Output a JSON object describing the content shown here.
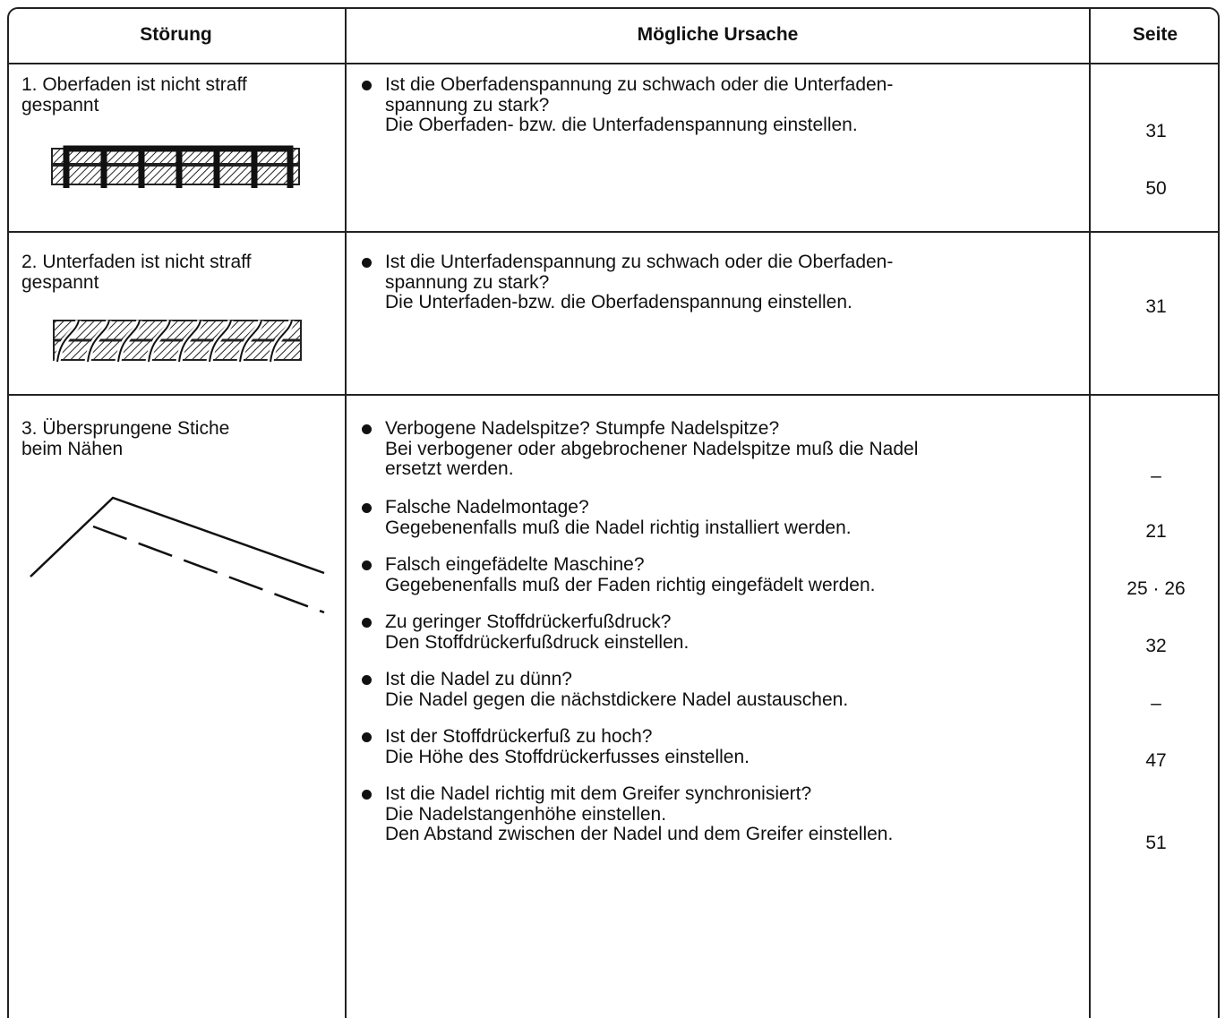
{
  "table": {
    "header": [
      "Störung",
      "Mögliche Ursache",
      "Seite"
    ],
    "rows": [
      {
        "problem": "1. Oberfaden ist nicht straff\ngespannt",
        "causes": [
          "Ist die Oberfadenspannung zu schwach oder die Unterfaden-\nspannung zu stark?\nDie Oberfaden- bzw. die Unterfadenspannung einstellen."
        ],
        "pages": [
          "31",
          "50"
        ]
      },
      {
        "problem": "2. Unterfaden ist nicht straff\ngespannt",
        "causes": [
          "Ist die Unterfadenspannung zu schwach oder die Oberfaden-\nspannung zu stark?\nDie Unterfaden-bzw. die Oberfadenspannung einstellen."
        ],
        "pages": [
          "31"
        ]
      },
      {
        "problem": "3. Übersprungene Stiche\nbeim Nähen",
        "causes": [
          "Verbogene Nadelspitze? Stumpfe Nadelspitze?\nBei verbogener oder abgebrochener Nadelspitze muß die Nadel\nersetzt werden.",
          "Falsche Nadelmontage?\nGegebenenfalls muß die Nadel richtig installiert werden.",
          "Falsch eingefädelte Maschine?\nGegebenenfalls muß der Faden richtig eingefädelt werden.",
          "Zu geringer Stoffdrückerfußdruck?\nDen Stoffdrückerfußdruck einstellen.",
          "Ist die Nadel zu dünn?\nDie Nadel gegen die nächstdickere Nadel austauschen.",
          "Ist der Stoffdrückerfuß zu hoch?\nDie Höhe des Stoffdrückerfusses einstellen.",
          "Ist die Nadel richtig mit dem Greifer synchronisiert?\nDie Nadelstangenhöhe einstellen.\nDen Abstand zwischen der Nadel und dem Greifer einstellen."
        ],
        "pages": [
          "–",
          "21",
          "25 · 26",
          "32",
          "–",
          "47",
          "51"
        ]
      }
    ]
  }
}
